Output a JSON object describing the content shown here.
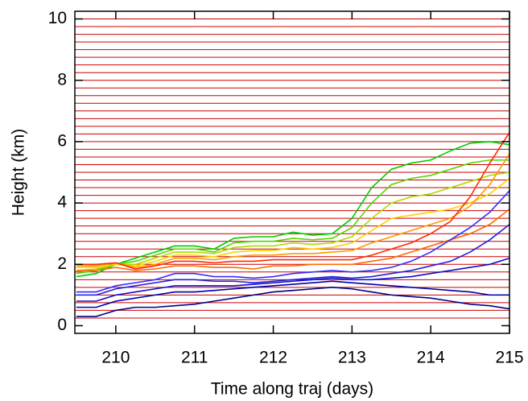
{
  "chart_data": {
    "type": "line",
    "xlabel": "Time along traj  (days)",
    "ylabel": "Height  (km)",
    "xlim": [
      209.48,
      215.0
    ],
    "ylim": [
      -0.25,
      10.25
    ],
    "xticks": [
      210,
      211,
      212,
      213,
      214,
      215
    ],
    "yticks": [
      0,
      2,
      4,
      6,
      8,
      10
    ],
    "hlines": {
      "color": "#cc0000",
      "values": [
        0.25,
        0.5,
        0.75,
        1,
        1.25,
        1.5,
        1.75,
        2,
        2.25,
        2.5,
        2.75,
        3,
        3.25,
        3.5,
        3.75,
        4,
        4.25,
        4.5,
        4.75,
        5,
        5.25,
        5.5,
        5.75,
        6,
        6.25,
        6.5,
        6.75,
        7,
        7.25,
        7.5,
        7.75,
        8,
        8.25,
        8.5,
        8.75,
        9,
        9.25,
        9.5,
        9.75,
        10
      ]
    },
    "x": [
      209.5,
      209.75,
      210,
      210.25,
      210.5,
      210.75,
      211,
      211.25,
      211.5,
      211.75,
      212,
      212.25,
      212.5,
      212.75,
      213,
      213.25,
      213.5,
      213.75,
      214,
      214.25,
      214.5,
      214.75,
      215
    ],
    "series": [
      {
        "color": "#00cc00",
        "values": [
          1.6,
          1.7,
          2.0,
          2.2,
          2.4,
          2.6,
          2.6,
          2.5,
          2.85,
          2.9,
          2.9,
          3.05,
          2.95,
          3.0,
          3.5,
          4.5,
          5.1,
          5.3,
          5.4,
          5.7,
          5.95,
          6.0,
          5.9
        ]
      },
      {
        "color": "#55d800",
        "values": [
          1.7,
          1.8,
          2.0,
          2.1,
          2.3,
          2.5,
          2.5,
          2.4,
          2.7,
          2.75,
          2.75,
          2.85,
          2.8,
          2.85,
          3.2,
          4.0,
          4.6,
          4.8,
          4.9,
          5.1,
          5.3,
          5.4,
          5.4
        ]
      },
      {
        "color": "#aadd00",
        "values": [
          1.8,
          1.85,
          2.0,
          2.0,
          2.2,
          2.4,
          2.4,
          2.35,
          2.55,
          2.6,
          2.6,
          2.7,
          2.65,
          2.7,
          2.9,
          3.5,
          4.0,
          4.2,
          4.3,
          4.5,
          4.7,
          4.9,
          5.0
        ]
      },
      {
        "color": "#ffd000",
        "values": [
          1.9,
          1.9,
          2.0,
          1.95,
          2.1,
          2.3,
          2.3,
          2.25,
          2.4,
          2.45,
          2.45,
          2.55,
          2.5,
          2.55,
          2.7,
          3.1,
          3.5,
          3.6,
          3.7,
          3.8,
          4.0,
          4.3,
          4.8
        ]
      },
      {
        "color": "#ff9900",
        "values": [
          1.95,
          1.95,
          2.05,
          1.9,
          2.0,
          2.2,
          2.2,
          2.15,
          2.25,
          2.3,
          2.3,
          2.35,
          2.35,
          2.4,
          2.45,
          2.7,
          2.9,
          3.1,
          3.3,
          3.5,
          3.9,
          4.6,
          5.6
        ]
      },
      {
        "color": "#ff2a00",
        "values": [
          2.0,
          2.0,
          2.05,
          1.85,
          1.95,
          2.1,
          2.1,
          2.05,
          2.1,
          2.1,
          2.15,
          2.15,
          2.15,
          2.15,
          2.15,
          2.3,
          2.5,
          2.7,
          3.0,
          3.4,
          4.2,
          5.3,
          6.3
        ]
      },
      {
        "color": "#ff6a00",
        "values": [
          1.8,
          1.8,
          1.9,
          1.8,
          1.85,
          1.95,
          1.95,
          1.9,
          1.9,
          1.85,
          1.95,
          1.95,
          2.0,
          2.0,
          2.0,
          2.1,
          2.2,
          2.4,
          2.6,
          2.8,
          3.0,
          3.3,
          3.8
        ]
      },
      {
        "color": "#3030ff",
        "values": [
          1.1,
          1.1,
          1.3,
          1.4,
          1.5,
          1.7,
          1.7,
          1.6,
          1.6,
          1.55,
          1.6,
          1.7,
          1.75,
          1.8,
          1.75,
          1.8,
          1.9,
          2.1,
          2.4,
          2.8,
          3.2,
          3.7,
          4.4
        ]
      },
      {
        "color": "#2020e0",
        "values": [
          1.0,
          1.0,
          1.2,
          1.3,
          1.4,
          1.5,
          1.5,
          1.45,
          1.45,
          1.4,
          1.45,
          1.5,
          1.55,
          1.6,
          1.55,
          1.6,
          1.7,
          1.8,
          1.95,
          2.1,
          2.4,
          2.8,
          3.3
        ]
      },
      {
        "color": "#1010cc",
        "values": [
          0.8,
          0.8,
          1.0,
          1.1,
          1.2,
          1.3,
          1.3,
          1.3,
          1.3,
          1.35,
          1.4,
          1.45,
          1.5,
          1.55,
          1.5,
          1.5,
          1.55,
          1.6,
          1.7,
          1.8,
          1.9,
          2.0,
          2.2
        ]
      },
      {
        "color": "#0000aa",
        "values": [
          0.6,
          0.6,
          0.8,
          0.9,
          1.0,
          1.1,
          1.1,
          1.15,
          1.2,
          1.25,
          1.3,
          1.35,
          1.4,
          1.45,
          1.4,
          1.35,
          1.3,
          1.25,
          1.2,
          1.15,
          1.1,
          1.0,
          1.0
        ]
      },
      {
        "color": "#000088",
        "values": [
          0.3,
          0.3,
          0.5,
          0.6,
          0.6,
          0.65,
          0.7,
          0.8,
          0.9,
          1.0,
          1.1,
          1.15,
          1.2,
          1.25,
          1.2,
          1.1,
          1.0,
          0.95,
          0.9,
          0.8,
          0.7,
          0.65,
          0.55
        ]
      }
    ]
  }
}
